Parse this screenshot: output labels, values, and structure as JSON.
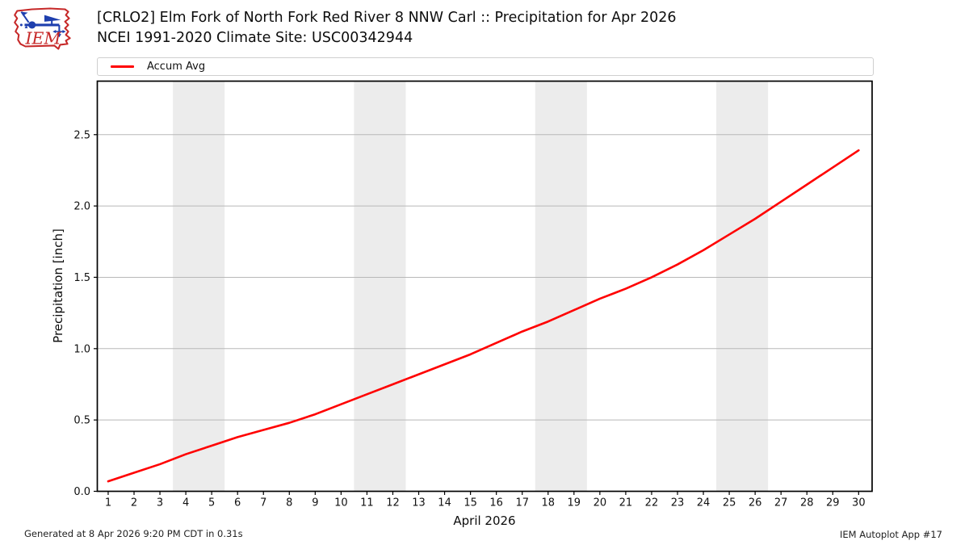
{
  "logo": {
    "text": "IEM"
  },
  "legend": {
    "items": [
      {
        "label": "Accum Avg",
        "color": "#ff0000"
      }
    ]
  },
  "footer": {
    "left": "Generated at 8 Apr 2026 9:20 PM CDT in 0.31s",
    "right": "IEM Autoplot App #17"
  },
  "chart_data": {
    "type": "line",
    "title": "[CRLO2] Elm Fork of North Fork Red River 8 NNW Carl :: Precipitation for Apr 2026",
    "subtitle": "NCEI 1991-2020 Climate Site: USC00342944",
    "xlabel": "April 2026",
    "ylabel": "Precipitation [inch]",
    "x": [
      1,
      2,
      3,
      4,
      5,
      6,
      7,
      8,
      9,
      10,
      11,
      12,
      13,
      14,
      15,
      16,
      17,
      18,
      19,
      20,
      21,
      22,
      23,
      24,
      25,
      26,
      27,
      28,
      29,
      30
    ],
    "series": [
      {
        "name": "Accum Avg",
        "color": "#ff0000",
        "values": [
          0.07,
          0.13,
          0.19,
          0.26,
          0.32,
          0.38,
          0.43,
          0.48,
          0.54,
          0.61,
          0.68,
          0.75,
          0.82,
          0.89,
          0.96,
          1.04,
          1.12,
          1.19,
          1.27,
          1.35,
          1.42,
          1.5,
          1.59,
          1.69,
          1.8,
          1.91,
          2.03,
          2.15,
          2.27,
          2.39
        ]
      }
    ],
    "xlim": [
      0.58,
      30.52
    ],
    "ylim": [
      0,
      2.875
    ],
    "x_tick_labels": [
      "1",
      "2",
      "3",
      "4",
      "5",
      "6",
      "7",
      "8",
      "9",
      "10",
      "11",
      "12",
      "13",
      "14",
      "15",
      "16",
      "17",
      "18",
      "19",
      "20",
      "21",
      "22",
      "23",
      "24",
      "25",
      "26",
      "27",
      "28",
      "29",
      "30"
    ],
    "y_tick_values": [
      0,
      0.5,
      1.0,
      1.5,
      2.0,
      2.5
    ],
    "y_tick_labels": [
      "0.0",
      "0.5",
      "1.0",
      "1.5",
      "2.0",
      "2.5"
    ],
    "grid": "horizontal",
    "grid_color": "#b8b8b8",
    "legend_position": "top",
    "weekend_bands": [
      [
        3.5,
        5.5
      ],
      [
        10.5,
        12.5
      ],
      [
        17.5,
        19.5
      ],
      [
        24.5,
        26.5
      ]
    ],
    "band_color": "#ececec"
  }
}
